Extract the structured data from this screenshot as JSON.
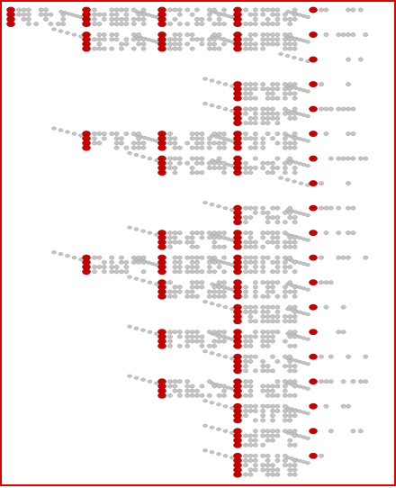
{
  "colors": {
    "frame": "#e00000",
    "marker": "#c80000",
    "marker_edge": "#8a0000",
    "dot": "#c4c4c4",
    "dot_edge": "#9a9a9a",
    "connector": "#c4c4c4",
    "background": "#ffffff"
  },
  "tree": {
    "columns": 5,
    "bit_rows": 4,
    "nodes": [
      {
        "id": "a0",
        "col": 0,
        "rows": 4,
        "parent": null
      },
      {
        "id": "b0",
        "col": 1,
        "rows": 4,
        "parent": "a0"
      },
      {
        "id": "b1",
        "col": 1,
        "rows": 4,
        "parent": "a0"
      },
      {
        "id": "b2",
        "col": 1,
        "rows": 4,
        "parent": "a0"
      },
      {
        "id": "b3",
        "col": 1,
        "rows": 4,
        "parent": "a0"
      },
      {
        "id": "c0",
        "col": 2,
        "rows": 4,
        "parent": "b0"
      },
      {
        "id": "c1",
        "col": 2,
        "rows": 4,
        "parent": "b1"
      },
      {
        "id": "c2",
        "col": 2,
        "rows": 4,
        "parent": "b2"
      },
      {
        "id": "c3",
        "col": 2,
        "rows": 4,
        "parent": "b2"
      },
      {
        "id": "c4",
        "col": 2,
        "rows": 4,
        "parent": "b2"
      },
      {
        "id": "c5",
        "col": 2,
        "rows": 4,
        "parent": "b3"
      },
      {
        "id": "c6",
        "col": 2,
        "rows": 4,
        "parent": "b3"
      },
      {
        "id": "c7",
        "col": 2,
        "rows": 4,
        "parent": "b3"
      },
      {
        "id": "c8",
        "col": 2,
        "rows": 4,
        "parent": "b3"
      },
      {
        "id": "d0",
        "col": 3,
        "rows": 4,
        "parent": "c0"
      },
      {
        "id": "d1",
        "col": 3,
        "rows": 4,
        "parent": "c1"
      },
      {
        "id": "d2",
        "col": 3,
        "rows": 4,
        "parent": "c1"
      },
      {
        "id": "d3",
        "col": 3,
        "rows": 4,
        "parent": "c1"
      },
      {
        "id": "d4",
        "col": 3,
        "rows": 4,
        "parent": "c2"
      },
      {
        "id": "d5",
        "col": 3,
        "rows": 4,
        "parent": "c3"
      },
      {
        "id": "d6",
        "col": 3,
        "rows": 4,
        "parent": "c3"
      },
      {
        "id": "d7",
        "col": 3,
        "rows": 4,
        "parent": "c4"
      },
      {
        "id": "d8",
        "col": 3,
        "rows": 4,
        "parent": "c5"
      },
      {
        "id": "d9",
        "col": 3,
        "rows": 4,
        "parent": "c6"
      },
      {
        "id": "d10",
        "col": 3,
        "rows": 4,
        "parent": "c6"
      },
      {
        "id": "d11",
        "col": 3,
        "rows": 4,
        "parent": "c7"
      },
      {
        "id": "d12",
        "col": 3,
        "rows": 4,
        "parent": "c7"
      },
      {
        "id": "d13",
        "col": 3,
        "rows": 4,
        "parent": "c8"
      },
      {
        "id": "d14",
        "col": 3,
        "rows": 4,
        "parent": "c8"
      },
      {
        "id": "d15",
        "col": 3,
        "rows": 4,
        "parent": "c8"
      },
      {
        "id": "d16",
        "col": 3,
        "rows": 5,
        "parent": "c8"
      },
      {
        "id": "e0",
        "col": 4,
        "rows": 1,
        "parent": "d0"
      },
      {
        "id": "e1",
        "col": 4,
        "rows": 1,
        "parent": "d1"
      },
      {
        "id": "e2",
        "col": 4,
        "rows": 1,
        "parent": "d1"
      },
      {
        "id": "e3",
        "col": 4,
        "rows": 1,
        "parent": "d2"
      },
      {
        "id": "e4",
        "col": 4,
        "rows": 1,
        "parent": "d3"
      },
      {
        "id": "e5",
        "col": 4,
        "rows": 1,
        "parent": "d4"
      },
      {
        "id": "e6",
        "col": 4,
        "rows": 1,
        "parent": "d5"
      },
      {
        "id": "e7",
        "col": 4,
        "rows": 1,
        "parent": "d5"
      },
      {
        "id": "e8",
        "col": 4,
        "rows": 1,
        "parent": "d6"
      },
      {
        "id": "e9",
        "col": 4,
        "rows": 1,
        "parent": "d7"
      },
      {
        "id": "e10",
        "col": 4,
        "rows": 1,
        "parent": "d8"
      },
      {
        "id": "e11",
        "col": 4,
        "rows": 1,
        "parent": "d9"
      },
      {
        "id": "e12",
        "col": 4,
        "rows": 1,
        "parent": "d10"
      },
      {
        "id": "e13",
        "col": 4,
        "rows": 1,
        "parent": "d11"
      },
      {
        "id": "e14",
        "col": 4,
        "rows": 1,
        "parent": "d12"
      },
      {
        "id": "e15",
        "col": 4,
        "rows": 1,
        "parent": "d13"
      },
      {
        "id": "e16",
        "col": 4,
        "rows": 1,
        "parent": "d14"
      },
      {
        "id": "e17",
        "col": 4,
        "rows": 1,
        "parent": "d15"
      },
      {
        "id": "e18",
        "col": 4,
        "rows": 1,
        "parent": "d16"
      }
    ]
  }
}
